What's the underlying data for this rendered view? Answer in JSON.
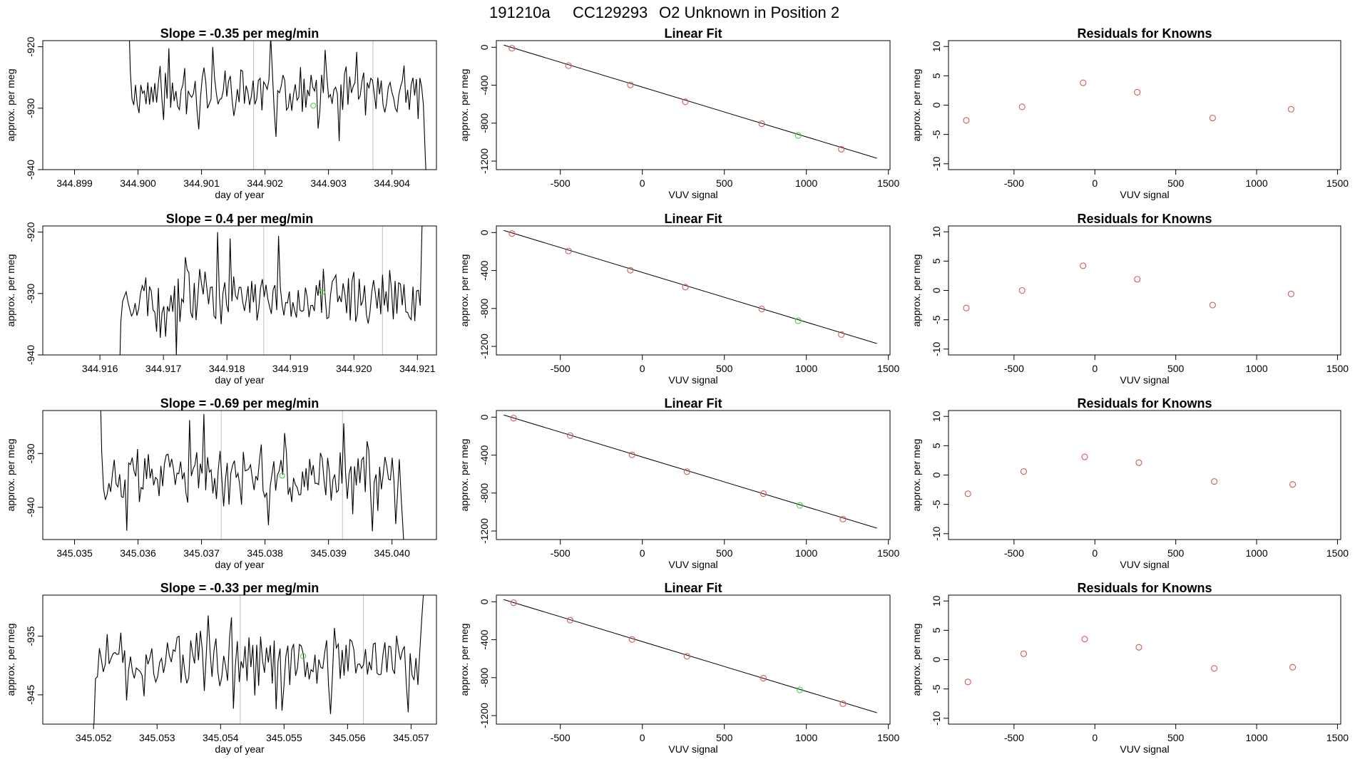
{
  "page": {
    "title_run": "191210a",
    "title_cylinder": "CC129293",
    "title_desc": "O2 Unknown in Position  2"
  },
  "chart_data": [
    {
      "type": "line",
      "title": "Slope =  -0.35  per meg/min",
      "xlabel": "day of year",
      "ylabel": "approx. per meg",
      "xlim": [
        344.8985,
        344.9047
      ],
      "ylim": [
        -940,
        -919
      ],
      "xticks": [
        344.899,
        344.9,
        344.901,
        344.902,
        344.903,
        344.904
      ],
      "xtick_labels": [
        "344.899",
        "344.900",
        "344.901",
        "344.902",
        "344.903",
        "344.904"
      ],
      "yticks": [
        -920,
        -930,
        -940
      ],
      "ytick_labels": [
        "-920",
        "-930",
        "-940"
      ],
      "vlines": [
        344.90182,
        344.9037
      ],
      "x_start": 344.89985,
      "x_end": 344.90455,
      "y_base": -927.5,
      "noise": 3.6,
      "spike_start": -913,
      "spike_end": -944,
      "seed": 11,
      "green_point": {
        "x": 344.90276,
        "y": -929.6
      }
    },
    {
      "type": "scatter",
      "title": "Linear Fit",
      "xlabel": "VUV signal",
      "ylabel": "approx. per meg",
      "xlim": [
        -890,
        1510
      ],
      "ylim": [
        -1290,
        70
      ],
      "xticks": [
        -500,
        0,
        500,
        1000,
        1500
      ],
      "xtick_labels": [
        "-500",
        "0",
        "500",
        "1000",
        "1500"
      ],
      "yticks": [
        0,
        -400,
        -800,
        -1200
      ],
      "ytick_labels": [
        "0",
        "-400",
        "-800",
        "-1200"
      ],
      "fit_line": {
        "x": [
          -845,
          1430
        ],
        "y": [
          23,
          -1170
        ]
      },
      "knowns": {
        "x": [
          -795,
          -450,
          -73,
          262,
          728,
          1213
        ],
        "y": [
          -10,
          -194,
          -397,
          -575,
          -806,
          -1075
        ]
      },
      "unknown": {
        "x": 950,
        "y": -930
      }
    },
    {
      "type": "scatter",
      "title": "Residuals for Knowns",
      "xlabel": "VUV signal",
      "ylabel": "approx. per meg",
      "xlim": [
        -905,
        1520
      ],
      "ylim": [
        -11,
        11
      ],
      "xticks": [
        -500,
        0,
        500,
        1000,
        1500
      ],
      "xtick_labels": [
        "-500",
        "0",
        "500",
        "1000",
        "1500"
      ],
      "yticks": [
        10,
        5,
        0,
        -5,
        -10
      ],
      "ytick_labels": [
        "10",
        "5",
        "0",
        "-5",
        "-10"
      ],
      "residuals": {
        "x": [
          -795,
          -450,
          -73,
          262,
          728,
          1213
        ],
        "y": [
          -2.6,
          -0.3,
          3.8,
          2.2,
          -2.2,
          -0.7
        ]
      }
    },
    {
      "type": "line",
      "title": "Slope =  0.4  per meg/min",
      "xlabel": "day of year",
      "ylabel": "approx. per meg",
      "xlim": [
        344.9151,
        344.9213
      ],
      "ylim": [
        -940,
        -919
      ],
      "xticks": [
        344.916,
        344.917,
        344.918,
        344.919,
        344.92,
        344.921
      ],
      "xtick_labels": [
        "344.916",
        "344.917",
        "344.918",
        "344.919",
        "344.920",
        "344.921"
      ],
      "yticks": [
        -920,
        -930,
        -940
      ],
      "ytick_labels": [
        "-920",
        "-930",
        "-940"
      ],
      "vlines": [
        344.91858,
        344.92045
      ],
      "x_start": 344.9163,
      "x_end": 344.9211,
      "y_base": -930.5,
      "noise": 3.8,
      "spike_start": -947,
      "spike_end": -912,
      "seed": 23,
      "green_point": {
        "x": 344.9195,
        "y": -929.8
      }
    },
    {
      "type": "scatter",
      "title": "Linear Fit",
      "xlabel": "VUV signal",
      "ylabel": "approx. per meg",
      "xlim": [
        -890,
        1510
      ],
      "ylim": [
        -1290,
        70
      ],
      "xticks": [
        -500,
        0,
        500,
        1000,
        1500
      ],
      "xtick_labels": [
        "-500",
        "0",
        "500",
        "1000",
        "1500"
      ],
      "yticks": [
        0,
        -400,
        -800,
        -1200
      ],
      "ytick_labels": [
        "0",
        "-400",
        "-800",
        "-1200"
      ],
      "fit_line": {
        "x": [
          -845,
          1430
        ],
        "y": [
          23,
          -1170
        ]
      },
      "knowns": {
        "x": [
          -795,
          -450,
          -73,
          262,
          728,
          1213
        ],
        "y": [
          -10,
          -194,
          -397,
          -575,
          -806,
          -1075
        ]
      },
      "unknown": {
        "x": 950,
        "y": -930
      }
    },
    {
      "type": "scatter",
      "title": "Residuals for Knowns",
      "xlabel": "VUV signal",
      "ylabel": "approx. per meg",
      "xlim": [
        -905,
        1520
      ],
      "ylim": [
        -11,
        11
      ],
      "xticks": [
        -500,
        0,
        500,
        1000,
        1500
      ],
      "xtick_labels": [
        "-500",
        "0",
        "500",
        "1000",
        "1500"
      ],
      "yticks": [
        10,
        5,
        0,
        -5,
        -10
      ],
      "ytick_labels": [
        "10",
        "5",
        "0",
        "-5",
        "-10"
      ],
      "residuals": {
        "x": [
          -795,
          -450,
          -73,
          262,
          728,
          1213
        ],
        "y": [
          -3.0,
          0.0,
          4.2,
          1.9,
          -2.5,
          -0.6
        ]
      }
    },
    {
      "type": "line",
      "title": "Slope =  -0.69  per meg/min",
      "xlabel": "day of year",
      "ylabel": "approx. per meg",
      "xlim": [
        345.0345,
        345.0407
      ],
      "ylim": [
        -946,
        -922
      ],
      "xticks": [
        345.035,
        345.036,
        345.037,
        345.038,
        345.039,
        345.04
      ],
      "xtick_labels": [
        "345.035",
        "345.036",
        "345.037",
        "345.038",
        "345.039",
        "345.040"
      ],
      "yticks": [
        -930,
        -940
      ],
      "ytick_labels": [
        "-930",
        "-940"
      ],
      "vlines": [
        345.03731,
        345.03922
      ],
      "x_start": 345.0354,
      "x_end": 345.0402,
      "y_base": -934.5,
      "noise": 4.2,
      "spike_start": -915,
      "spike_end": -950,
      "seed": 37,
      "green_point": {
        "x": 345.03827,
        "y": -934.1
      }
    },
    {
      "type": "scatter",
      "title": "Linear Fit",
      "xlabel": "VUV signal",
      "ylabel": "approx. per meg",
      "xlim": [
        -890,
        1510
      ],
      "ylim": [
        -1290,
        70
      ],
      "xticks": [
        -500,
        0,
        500,
        1000,
        1500
      ],
      "xtick_labels": [
        "-500",
        "0",
        "500",
        "1000",
        "1500"
      ],
      "yticks": [
        0,
        -400,
        -800,
        -1200
      ],
      "ytick_labels": [
        "0",
        "-400",
        "-800",
        "-1200"
      ],
      "fit_line": {
        "x": [
          -845,
          1430
        ],
        "y": [
          23,
          -1170
        ]
      },
      "knowns": {
        "x": [
          -785,
          -440,
          -63,
          272,
          738,
          1223
        ],
        "y": [
          -10,
          -194,
          -397,
          -575,
          -806,
          -1075
        ]
      },
      "unknown": {
        "x": 960,
        "y": -930
      }
    },
    {
      "type": "scatter",
      "title": "Residuals for Knowns",
      "xlabel": "VUV signal",
      "ylabel": "approx. per meg",
      "xlim": [
        -905,
        1520
      ],
      "ylim": [
        -11,
        11
      ],
      "xticks": [
        -500,
        0,
        500,
        1000,
        1500
      ],
      "xtick_labels": [
        "-500",
        "0",
        "500",
        "1000",
        "1500"
      ],
      "yticks": [
        10,
        5,
        0,
        -5,
        -10
      ],
      "ytick_labels": [
        "10",
        "5",
        "0",
        "-5",
        "-10"
      ],
      "residuals": {
        "x": [
          -785,
          -440,
          -63,
          272,
          738,
          1223
        ],
        "y": [
          -3.2,
          0.6,
          3.1,
          2.1,
          -1.1,
          -1.6
        ]
      }
    },
    {
      "type": "line",
      "title": "Slope =  -0.33  per meg/min",
      "xlabel": "day of year",
      "ylabel": "approx. per meg",
      "xlim": [
        345.0512,
        345.0574
      ],
      "ylim": [
        -950,
        -928
      ],
      "xticks": [
        345.052,
        345.053,
        345.054,
        345.055,
        345.056,
        345.057
      ],
      "xtick_labels": [
        "345.052",
        "345.053",
        "345.054",
        "345.055",
        "345.056",
        "345.057"
      ],
      "yticks": [
        -935,
        -945
      ],
      "ytick_labels": [
        "-935",
        "-945"
      ],
      "vlines": [
        345.05431,
        345.05625
      ],
      "x_start": 345.052,
      "x_end": 345.0572,
      "y_base": -939.0,
      "noise": 3.7,
      "spike_start": -952,
      "spike_end": -927,
      "seed": 51,
      "green_point": {
        "x": 345.0553,
        "y": -938.4
      }
    },
    {
      "type": "scatter",
      "title": "Linear Fit",
      "xlabel": "VUV signal",
      "ylabel": "approx. per meg",
      "xlim": [
        -890,
        1510
      ],
      "ylim": [
        -1290,
        70
      ],
      "xticks": [
        -500,
        0,
        500,
        1000,
        1500
      ],
      "xtick_labels": [
        "-500",
        "0",
        "500",
        "1000",
        "1500"
      ],
      "yticks": [
        0,
        -400,
        -800,
        -1200
      ],
      "ytick_labels": [
        "0",
        "-400",
        "-800",
        "-1200"
      ],
      "fit_line": {
        "x": [
          -845,
          1430
        ],
        "y": [
          23,
          -1170
        ]
      },
      "knowns": {
        "x": [
          -785,
          -440,
          -63,
          272,
          738,
          1223
        ],
        "y": [
          -10,
          -194,
          -397,
          -575,
          -806,
          -1075
        ]
      },
      "unknown": {
        "x": 960,
        "y": -930
      }
    },
    {
      "type": "scatter",
      "title": "Residuals for Knowns",
      "xlabel": "VUV signal",
      "ylabel": "approx. per meg",
      "xlim": [
        -905,
        1520
      ],
      "ylim": [
        -11,
        11
      ],
      "xticks": [
        -500,
        0,
        500,
        1000,
        1500
      ],
      "xtick_labels": [
        "-500",
        "0",
        "500",
        "1000",
        "1500"
      ],
      "yticks": [
        10,
        5,
        0,
        -5,
        -10
      ],
      "ytick_labels": [
        "10",
        "5",
        "0",
        "-5",
        "-10"
      ],
      "residuals": {
        "x": [
          -785,
          -440,
          -63,
          272,
          738,
          1223
        ],
        "y": [
          -3.8,
          1.0,
          3.5,
          2.1,
          -1.5,
          -1.3
        ]
      }
    }
  ],
  "colors": {
    "axis": "#000000",
    "trace": "#000000",
    "known_marker": "#cd5c5c",
    "unknown_marker": "#4ccf4c",
    "vline": "#bdbdbd"
  }
}
